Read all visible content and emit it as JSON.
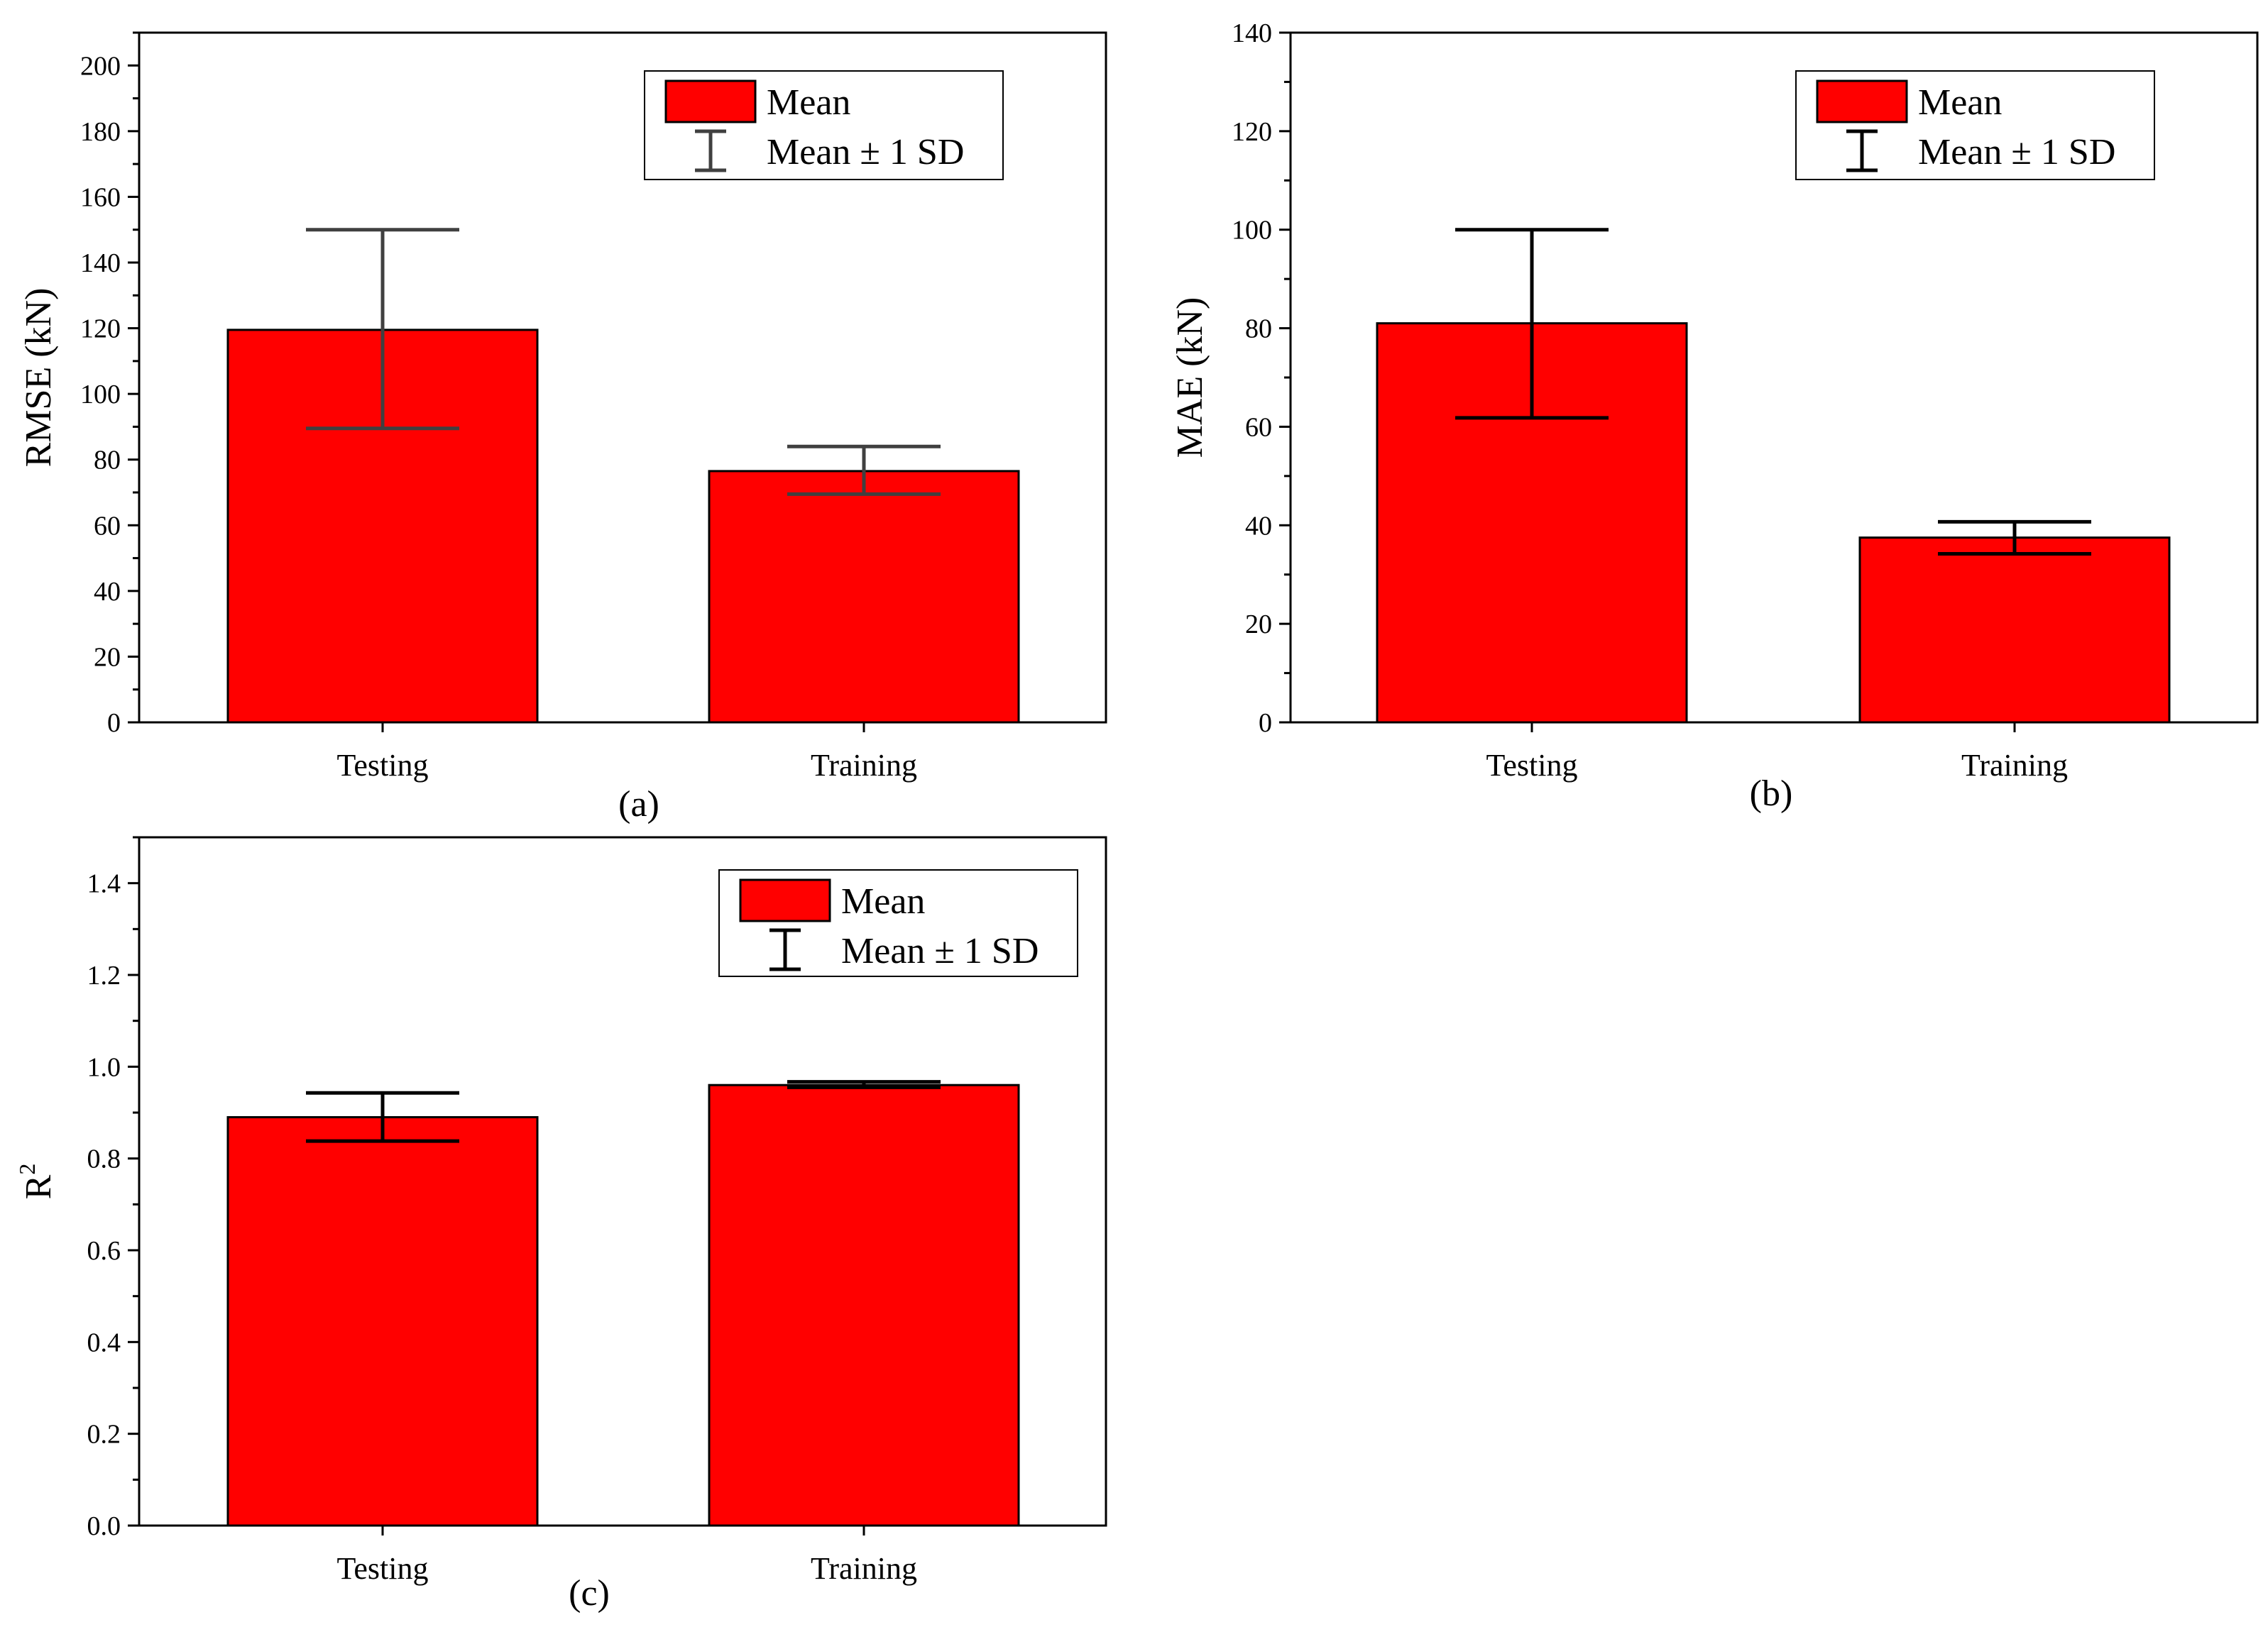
{
  "chart_data": [
    {
      "type": "bar",
      "panel": "(a)",
      "ylabel": "RMSE (kN)",
      "ylabel_sup": "",
      "categories": [
        "Testing",
        "Training"
      ],
      "values": [
        119.5,
        76.5
      ],
      "error_low": [
        89.5,
        69.5
      ],
      "error_high": [
        150,
        84
      ],
      "ylim": [
        0,
        210
      ],
      "major_ticks": [
        0,
        20,
        40,
        60,
        80,
        100,
        120,
        140,
        160,
        180,
        200
      ],
      "tick_labels": [
        "0",
        "20",
        "40",
        "60",
        "80",
        "100",
        "120",
        "140",
        "160",
        "180",
        "200"
      ],
      "minor_step": 10,
      "legend": [
        "Mean",
        "Mean ± 1 SD"
      ],
      "legend_position": "top-right",
      "bar_color": "#ff0000",
      "error_color": "#404040"
    },
    {
      "type": "bar",
      "panel": "(b)",
      "ylabel": "MAE (kN)",
      "ylabel_sup": "",
      "categories": [
        "Testing",
        "Training"
      ],
      "values": [
        81,
        37.5
      ],
      "error_low": [
        61.8,
        34.2
      ],
      "error_high": [
        100,
        40.7
      ],
      "ylim": [
        0,
        140
      ],
      "major_ticks": [
        0,
        20,
        40,
        60,
        80,
        100,
        120,
        140
      ],
      "tick_labels": [
        "0",
        "20",
        "40",
        "60",
        "80",
        "100",
        "120",
        "140"
      ],
      "minor_step": 10,
      "legend": [
        "Mean",
        "Mean ± 1 SD"
      ],
      "legend_position": "top-right",
      "bar_color": "#ff0000",
      "error_color": "#000000"
    },
    {
      "type": "bar",
      "panel": "(c)",
      "ylabel": "R",
      "ylabel_sup": "2",
      "categories": [
        "Testing",
        "Training"
      ],
      "values": [
        0.89,
        0.96
      ],
      "error_low": [
        0.838,
        0.955
      ],
      "error_high": [
        0.943,
        0.967
      ],
      "ylim": [
        0,
        1.5
      ],
      "major_ticks": [
        0,
        0.2,
        0.4,
        0.6,
        0.8,
        1.0,
        1.2,
        1.4
      ],
      "tick_labels": [
        "0.0",
        "0.2",
        "0.4",
        "0.6",
        "0.8",
        "1.0",
        "1.2",
        "1.4"
      ],
      "minor_step": 0.1,
      "legend": [
        "Mean",
        "Mean ± 1 SD"
      ],
      "legend_position": "top-right",
      "bar_color": "#ff0000",
      "error_color": "#000000"
    }
  ]
}
